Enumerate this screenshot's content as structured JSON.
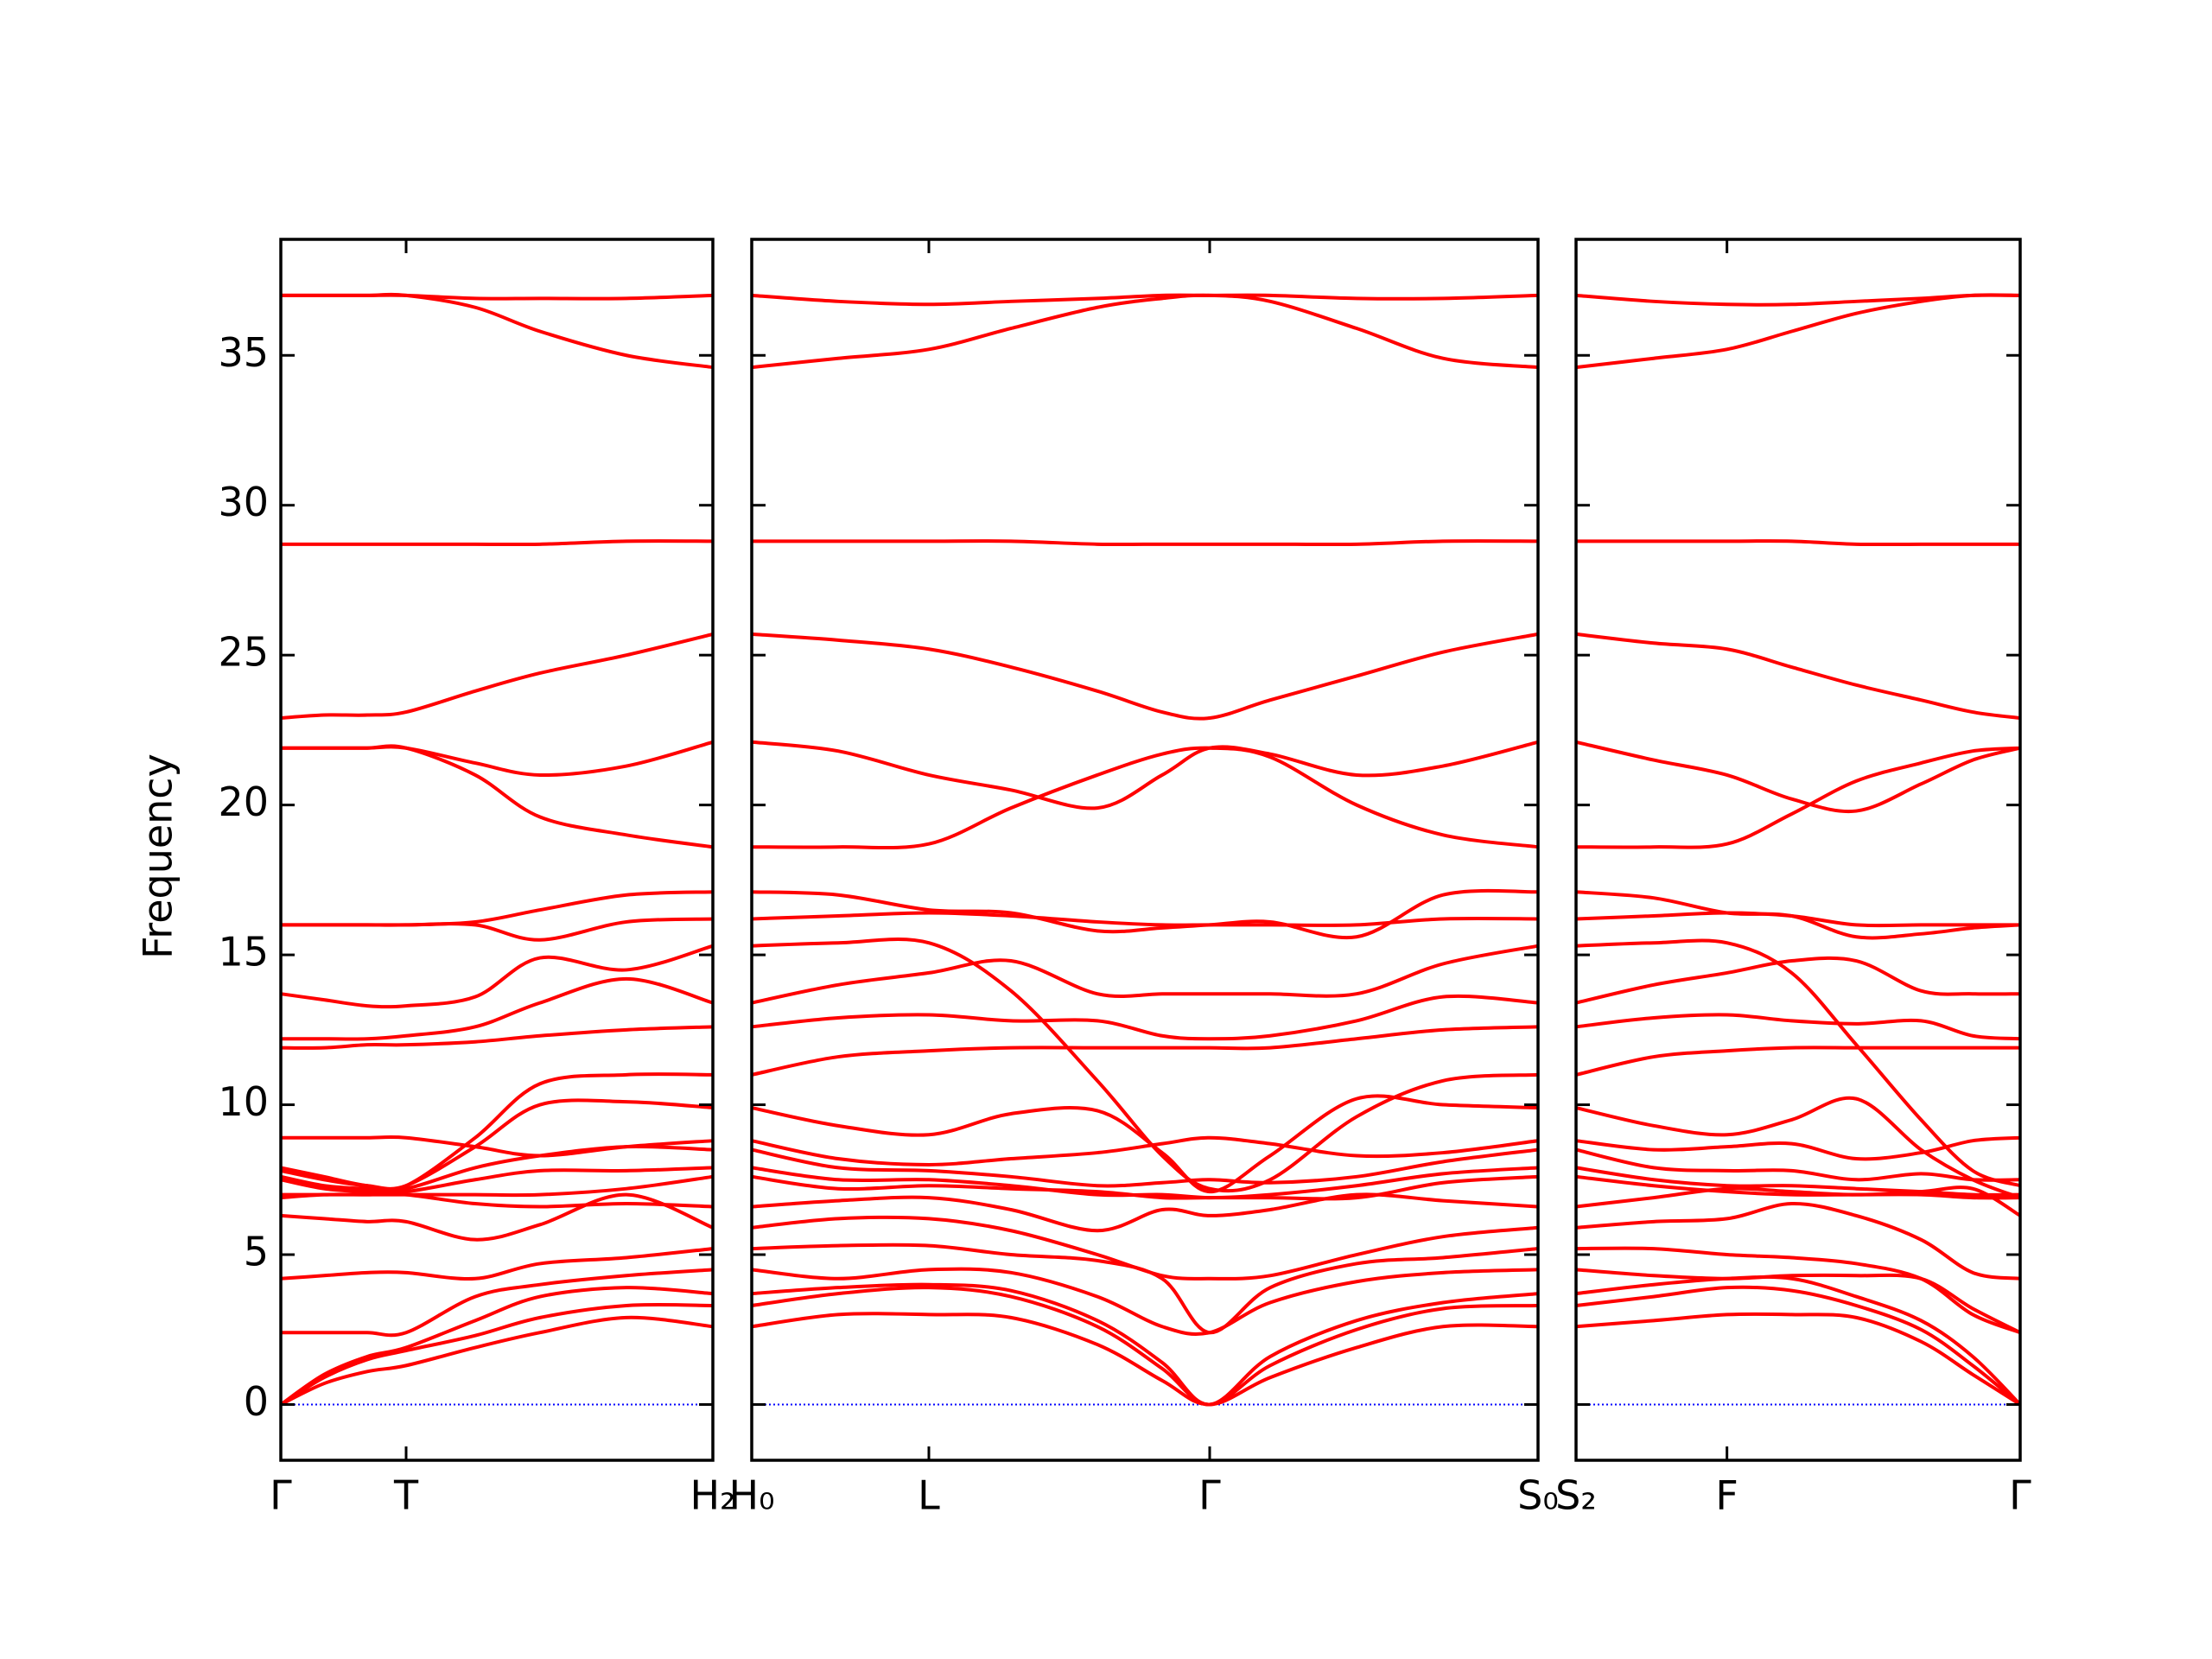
{
  "chart_data": [
    {
      "type": "line",
      "ylabel": "Frequency",
      "color": "#ff0000",
      "ytick_labels": true,
      "hline": {
        "value": 0,
        "color": "#0000ff"
      },
      "xlim": [
        0,
        1.0
      ],
      "xticks": [
        {
          "value": 0,
          "label": "Γ"
        },
        {
          "value": 0.29,
          "label": "T"
        },
        {
          "value": 1.0,
          "label": "H₂"
        }
      ],
      "ylim": [
        -1.86,
        38.87
      ],
      "yticks": [
        0,
        5,
        10,
        15,
        20,
        25,
        30,
        35
      ],
      "x": [
        0,
        0.1,
        0.2,
        0.29,
        0.45,
        0.6,
        0.8,
        1.0
      ],
      "series": [
        {
          "values": [
            0,
            0.7,
            1.1,
            1.3,
            1.9,
            2.4,
            2.9,
            2.6
          ]
        },
        {
          "values": [
            0,
            0.9,
            1.5,
            1.8,
            2.3,
            2.9,
            3.3,
            3.3
          ]
        },
        {
          "values": [
            0,
            1.0,
            1.6,
            1.9,
            2.8,
            3.6,
            3.9,
            3.7
          ]
        },
        {
          "values": [
            2.4,
            2.4,
            2.4,
            2.4,
            3.6,
            4.0,
            4.3,
            4.5
          ]
        },
        {
          "values": [
            4.2,
            4.3,
            4.4,
            4.4,
            4.2,
            4.7,
            4.9,
            5.2
          ]
        },
        {
          "values": [
            6.3,
            6.2,
            6.1,
            6.1,
            5.5,
            6.0,
            7.0,
            5.9
          ]
        },
        {
          "values": [
            6.9,
            7.0,
            7.0,
            7.0,
            6.7,
            6.6,
            6.7,
            6.6
          ]
        },
        {
          "values": [
            7.0,
            7.0,
            7.0,
            7.0,
            7.0,
            7.0,
            7.2,
            7.6
          ]
        },
        {
          "values": [
            7.5,
            7.2,
            7.1,
            7.1,
            7.5,
            7.8,
            7.8,
            7.9
          ]
        },
        {
          "values": [
            7.6,
            7.3,
            7.2,
            7.2,
            7.9,
            8.3,
            8.6,
            8.5
          ]
        },
        {
          "values": [
            8.9,
            8.9,
            8.9,
            8.9,
            8.6,
            8.3,
            8.6,
            8.8
          ]
        },
        {
          "values": [
            7.8,
            7.5,
            7.3,
            7.3,
            8.6,
            10.0,
            10.1,
            9.9
          ]
        },
        {
          "values": [
            7.9,
            7.6,
            7.3,
            7.3,
            8.9,
            10.7,
            11.0,
            11.0
          ]
        },
        {
          "values": [
            11.9,
            11.9,
            12.0,
            12.0,
            12.1,
            12.3,
            12.5,
            12.6
          ]
        },
        {
          "values": [
            12.2,
            12.2,
            12.2,
            12.3,
            12.6,
            13.4,
            14.2,
            13.4
          ]
        },
        {
          "values": [
            13.7,
            13.5,
            13.3,
            13.3,
            13.6,
            14.9,
            14.5,
            15.3
          ]
        },
        {
          "values": [
            16.0,
            16.0,
            16.0,
            16.0,
            16.0,
            15.5,
            16.1,
            16.2
          ]
        },
        {
          "values": [
            16.0,
            16.0,
            16.0,
            16.0,
            16.1,
            16.5,
            17.0,
            17.1
          ]
        },
        {
          "values": [
            21.9,
            21.9,
            21.9,
            21.9,
            21.0,
            19.6,
            19.0,
            18.6
          ]
        },
        {
          "values": [
            21.9,
            21.9,
            21.9,
            21.9,
            21.4,
            21.0,
            21.3,
            22.1
          ]
        },
        {
          "values": [
            22.9,
            23.0,
            23.0,
            23.1,
            23.8,
            24.4,
            25.0,
            25.7
          ]
        },
        {
          "values": [
            28.7,
            28.7,
            28.7,
            28.7,
            28.7,
            28.7,
            28.8,
            28.8
          ]
        },
        {
          "values": [
            37.0,
            37.0,
            37.0,
            37.0,
            36.6,
            35.8,
            35.0,
            34.6
          ]
        },
        {
          "values": [
            37.0,
            37.0,
            37.0,
            37.0,
            36.9,
            36.9,
            36.9,
            37.0
          ]
        }
      ]
    },
    {
      "type": "line",
      "color": "#ff0000",
      "ytick_labels": false,
      "hline": {
        "value": 0,
        "color": "#0000ff"
      },
      "xlim": [
        0,
        1.82
      ],
      "xticks": [
        {
          "value": 0,
          "label": "H₀"
        },
        {
          "value": 0.41,
          "label": "L"
        },
        {
          "value": 1.06,
          "label": "Γ"
        },
        {
          "value": 1.82,
          "label": "S₀"
        }
      ],
      "ylim": [
        -1.86,
        38.87
      ],
      "yticks": [
        0,
        5,
        10,
        15,
        20,
        25,
        30,
        35
      ],
      "x": [
        0,
        0.2,
        0.41,
        0.6,
        0.8,
        0.95,
        1.06,
        1.2,
        1.4,
        1.6,
        1.82
      ],
      "series": [
        {
          "values": [
            2.6,
            3.0,
            3.0,
            2.9,
            2.0,
            0.8,
            0,
            0.9,
            1.9,
            2.6,
            2.6
          ]
        },
        {
          "values": [
            3.3,
            3.7,
            3.9,
            3.6,
            2.6,
            1.2,
            0,
            1.3,
            2.5,
            3.2,
            3.3
          ]
        },
        {
          "values": [
            3.7,
            3.9,
            4.0,
            3.8,
            2.8,
            1.4,
            0,
            1.6,
            2.8,
            3.4,
            3.7
          ]
        },
        {
          "values": [
            4.5,
            4.2,
            4.5,
            4.4,
            3.6,
            2.6,
            2.4,
            3.4,
            4.1,
            4.4,
            4.5
          ]
        },
        {
          "values": [
            5.2,
            5.3,
            5.3,
            5.0,
            4.8,
            4.2,
            2.4,
            3.9,
            4.7,
            4.9,
            5.2
          ]
        },
        {
          "values": [
            5.9,
            6.2,
            6.2,
            5.8,
            5.0,
            4.3,
            4.2,
            4.3,
            5.0,
            5.6,
            5.9
          ]
        },
        {
          "values": [
            6.6,
            6.8,
            6.9,
            6.5,
            5.8,
            6.5,
            6.3,
            6.5,
            7.0,
            6.8,
            6.6
          ]
        },
        {
          "values": [
            7.6,
            7.2,
            7.3,
            7.2,
            7.1,
            6.9,
            6.9,
            6.9,
            6.9,
            7.4,
            7.6
          ]
        },
        {
          "values": [
            7.9,
            7.5,
            7.5,
            7.3,
            7.0,
            7.0,
            6.9,
            7.0,
            7.3,
            7.7,
            7.9
          ]
        },
        {
          "values": [
            8.5,
            7.9,
            7.8,
            7.6,
            7.3,
            7.4,
            7.5,
            7.4,
            7.6,
            8.1,
            8.5
          ]
        },
        {
          "values": [
            8.8,
            8.2,
            8.0,
            8.2,
            8.4,
            8.7,
            8.9,
            8.7,
            8.3,
            8.4,
            8.8
          ]
        },
        {
          "values": [
            9.9,
            9.3,
            9.0,
            9.7,
            9.8,
            8.4,
            7.1,
            8.3,
            10.2,
            10.0,
            9.9
          ]
        },
        {
          "values": [
            11.0,
            11.6,
            11.8,
            11.9,
            11.9,
            11.9,
            11.9,
            11.9,
            12.2,
            12.5,
            12.6
          ]
        },
        {
          "values": [
            12.6,
            12.9,
            13.0,
            12.8,
            12.8,
            12.3,
            12.2,
            12.3,
            12.8,
            13.6,
            13.4
          ]
        },
        {
          "values": [
            13.4,
            14.0,
            14.4,
            14.8,
            13.7,
            13.7,
            13.7,
            13.7,
            13.7,
            14.7,
            15.3
          ]
        },
        {
          "values": [
            15.3,
            15.4,
            15.4,
            13.8,
            10.8,
            8.3,
            7.2,
            7.5,
            9.6,
            10.8,
            11.0
          ]
        },
        {
          "values": [
            16.2,
            16.3,
            16.4,
            16.3,
            16.1,
            16.0,
            16.0,
            16.0,
            16.0,
            16.2,
            16.2
          ]
        },
        {
          "values": [
            17.1,
            17.0,
            16.5,
            16.4,
            15.8,
            15.9,
            16.0,
            16.1,
            15.6,
            17.0,
            17.1
          ]
        },
        {
          "values": [
            18.6,
            18.6,
            18.7,
            19.9,
            21.0,
            21.7,
            21.9,
            21.6,
            20.0,
            19.0,
            18.6
          ]
        },
        {
          "values": [
            22.1,
            21.8,
            21.0,
            20.5,
            19.9,
            21.0,
            21.9,
            21.7,
            21.0,
            21.3,
            22.1
          ]
        },
        {
          "values": [
            25.7,
            25.5,
            25.2,
            24.6,
            23.8,
            23.1,
            22.9,
            23.5,
            24.3,
            25.1,
            25.7
          ]
        },
        {
          "values": [
            28.8,
            28.8,
            28.8,
            28.8,
            28.7,
            28.7,
            28.7,
            28.7,
            28.7,
            28.8,
            28.8
          ]
        },
        {
          "values": [
            34.6,
            34.9,
            35.2,
            35.9,
            36.6,
            36.9,
            37.0,
            36.8,
            35.9,
            34.9,
            34.6
          ]
        },
        {
          "values": [
            37.0,
            36.8,
            36.7,
            36.8,
            36.9,
            37.0,
            37.0,
            37.0,
            36.9,
            36.9,
            37.0
          ]
        }
      ]
    },
    {
      "type": "line",
      "color": "#ff0000",
      "ytick_labels": false,
      "hline": {
        "value": 0,
        "color": "#0000ff"
      },
      "xlim": [
        0,
        1.03
      ],
      "xticks": [
        {
          "value": 0,
          "label": "S₂"
        },
        {
          "value": 0.35,
          "label": "F"
        },
        {
          "value": 1.03,
          "label": "Γ"
        }
      ],
      "ylim": [
        -1.86,
        38.87
      ],
      "yticks": [
        0,
        5,
        10,
        15,
        20,
        25,
        30,
        35
      ],
      "x": [
        0,
        0.18,
        0.35,
        0.5,
        0.65,
        0.8,
        0.92,
        1.03
      ],
      "series": [
        {
          "values": [
            2.6,
            2.8,
            3.0,
            3.0,
            2.9,
            2.1,
            1.0,
            0
          ]
        },
        {
          "values": [
            3.3,
            3.6,
            3.9,
            3.8,
            3.3,
            2.5,
            1.3,
            0
          ]
        },
        {
          "values": [
            3.7,
            4.0,
            4.2,
            4.2,
            3.6,
            2.8,
            1.6,
            0
          ]
        },
        {
          "values": [
            4.5,
            4.3,
            4.2,
            4.3,
            4.3,
            4.2,
            3.2,
            2.4
          ]
        },
        {
          "values": [
            5.2,
            5.2,
            5.0,
            4.9,
            4.7,
            4.2,
            3.0,
            2.4
          ]
        },
        {
          "values": [
            5.9,
            6.1,
            6.2,
            6.7,
            6.3,
            5.5,
            4.4,
            4.2
          ]
        },
        {
          "values": [
            6.6,
            6.9,
            7.2,
            7.1,
            7.0,
            7.1,
            7.2,
            6.3
          ]
        },
        {
          "values": [
            7.6,
            7.3,
            7.1,
            7.0,
            7.0,
            7.0,
            6.9,
            6.9
          ]
        },
        {
          "values": [
            7.9,
            7.5,
            7.3,
            7.3,
            7.2,
            7.1,
            7.0,
            7.0
          ]
        },
        {
          "values": [
            8.5,
            7.9,
            7.8,
            7.8,
            7.5,
            7.7,
            7.5,
            7.5
          ]
        },
        {
          "values": [
            8.8,
            8.5,
            8.6,
            8.7,
            8.2,
            8.4,
            8.8,
            8.9
          ]
        },
        {
          "values": [
            9.9,
            9.3,
            9.0,
            9.5,
            10.2,
            8.5,
            7.5,
            6.9
          ]
        },
        {
          "values": [
            11.0,
            11.6,
            11.8,
            11.9,
            11.9,
            11.9,
            11.9,
            11.9
          ]
        },
        {
          "values": [
            12.6,
            12.9,
            13.0,
            12.8,
            12.7,
            12.8,
            12.3,
            12.2
          ]
        },
        {
          "values": [
            13.4,
            14.0,
            14.4,
            14.8,
            14.8,
            13.8,
            13.7,
            13.7
          ]
        },
        {
          "values": [
            15.3,
            15.4,
            15.4,
            14.4,
            12.0,
            9.5,
            7.8,
            7.3
          ]
        },
        {
          "values": [
            16.2,
            16.3,
            16.4,
            16.3,
            16.0,
            16.0,
            16.0,
            16.0
          ]
        },
        {
          "values": [
            17.1,
            16.9,
            16.4,
            16.3,
            15.6,
            15.7,
            15.9,
            16.0
          ]
        },
        {
          "values": [
            18.6,
            18.6,
            18.7,
            19.7,
            20.8,
            21.4,
            21.8,
            21.9
          ]
        },
        {
          "values": [
            22.1,
            21.5,
            21.0,
            20.2,
            19.8,
            20.7,
            21.5,
            21.9
          ]
        },
        {
          "values": [
            25.7,
            25.4,
            25.2,
            24.6,
            24.0,
            23.5,
            23.1,
            22.9
          ]
        },
        {
          "values": [
            28.8,
            28.8,
            28.8,
            28.8,
            28.7,
            28.7,
            28.7,
            28.7
          ]
        },
        {
          "values": [
            34.6,
            34.9,
            35.2,
            35.8,
            36.4,
            36.8,
            37.0,
            37.0
          ]
        },
        {
          "values": [
            37.0,
            36.8,
            36.7,
            36.7,
            36.8,
            36.9,
            37.0,
            37.0
          ]
        }
      ]
    }
  ]
}
